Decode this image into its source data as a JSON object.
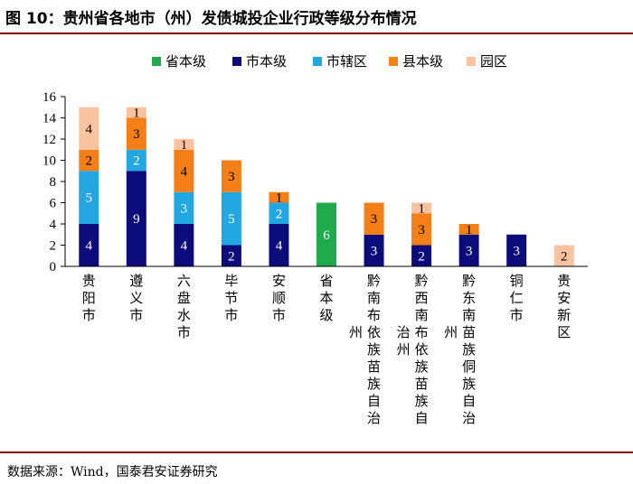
{
  "figure": {
    "title": "图 10：贵州省各地市（州）发债城投企业行政等级分布情况",
    "source": "数据来源：Wind，国泰君安证券研究"
  },
  "chart_data": {
    "type": "bar",
    "stacked": true,
    "title": "",
    "xlabel": "",
    "ylabel": "",
    "ylim": [
      0,
      16
    ],
    "yticks": [
      0,
      2,
      4,
      6,
      8,
      10,
      12,
      14,
      16
    ],
    "grid": false,
    "legend_position": "top",
    "categories": [
      "贵阳市",
      "遵义市",
      "六盘水市",
      "毕节市",
      "安顺市",
      "省本级",
      "黔南布依族苗族自治州",
      "黔西南布依族苗族自治州",
      "黔东南苗族侗族自治州",
      "铜仁市",
      "贵安新区"
    ],
    "category_label_columns": [
      [
        "贵阳市"
      ],
      [
        "遵义市"
      ],
      [
        "六盘水市"
      ],
      [
        "毕节市"
      ],
      [
        "安顺市"
      ],
      [
        "省本级"
      ],
      [
        "黔南布依族苗族自治",
        "州"
      ],
      [
        "黔西南布依族苗族自",
        "治州"
      ],
      [
        "黔东南苗族侗族自治",
        "州"
      ],
      [
        "铜仁市"
      ],
      [
        "贵安新区"
      ]
    ],
    "series": [
      {
        "name": "省本级",
        "color": "#1faa4b",
        "values": [
          0,
          0,
          0,
          0,
          0,
          6,
          0,
          0,
          0,
          0,
          0
        ],
        "label_color": "#ffffff"
      },
      {
        "name": "市本级",
        "color": "#0b0c7a",
        "values": [
          4,
          9,
          4,
          2,
          4,
          0,
          3,
          2,
          3,
          3,
          0
        ],
        "label_color": "#ffffff"
      },
      {
        "name": "市辖区",
        "color": "#22a7e0",
        "values": [
          5,
          2,
          3,
          5,
          2,
          0,
          0,
          0,
          0,
          0,
          0
        ],
        "label_color": "#ffffff"
      },
      {
        "name": "县本级",
        "color": "#f47f16",
        "values": [
          2,
          3,
          4,
          3,
          1,
          0,
          3,
          3,
          1,
          0,
          0
        ],
        "label_color": "#000000"
      },
      {
        "name": "园区",
        "color": "#f9c3a0",
        "values": [
          4,
          1,
          1,
          0,
          0,
          0,
          0,
          1,
          0,
          0,
          2
        ],
        "label_color": "#000000"
      }
    ]
  }
}
